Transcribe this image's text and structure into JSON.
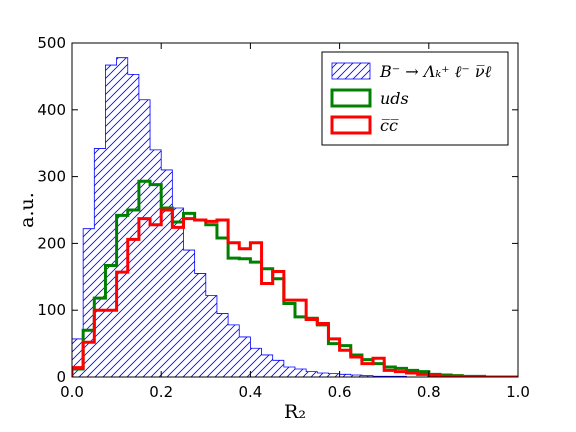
{
  "chart_data": {
    "type": "histogram",
    "xlabel": "R₂",
    "ylabel": "a.u.",
    "xlim": [
      0,
      1
    ],
    "ylim": [
      0,
      500
    ],
    "xticks": [
      "0.0",
      "0.2",
      "0.4",
      "0.6",
      "0.8",
      "1.0"
    ],
    "yticks": [
      "0",
      "100",
      "200",
      "300",
      "400",
      "500"
    ],
    "legend_position": "top-right",
    "bin_width": 0.025,
    "series": [
      {
        "name": "B⁻ → Λₖ⁺ ℓ⁻ ν̅ℓ",
        "style": "hatched",
        "color": "#0000ff",
        "values": [
          57,
          222,
          342,
          467,
          478,
          453,
          415,
          340,
          310,
          253,
          190,
          155,
          122,
          95,
          78,
          60,
          43,
          33,
          25,
          15,
          12,
          8,
          6,
          5,
          4,
          3,
          2,
          1,
          1,
          1,
          0,
          0,
          0,
          0,
          0,
          0,
          0,
          0,
          0,
          0
        ]
      },
      {
        "name": "uds",
        "style": "step",
        "color": "#008000",
        "values": [
          12,
          70,
          118,
          167,
          242,
          250,
          293,
          288,
          253,
          232,
          245,
          235,
          228,
          208,
          178,
          177,
          172,
          162,
          147,
          110,
          90,
          88,
          78,
          50,
          47,
          33,
          26,
          20,
          15,
          13,
          10,
          8,
          4,
          3,
          2,
          1,
          1,
          0,
          0,
          0
        ]
      },
      {
        "name": "c̅c̅",
        "style": "step",
        "color": "#ff0000",
        "values": [
          14,
          52,
          100,
          100,
          157,
          206,
          237,
          228,
          250,
          224,
          237,
          235,
          233,
          235,
          201,
          192,
          201,
          140,
          158,
          115,
          115,
          86,
          80,
          57,
          40,
          30,
          20,
          28,
          10,
          8,
          6,
          4,
          2,
          1,
          1,
          0,
          0,
          0,
          0,
          0
        ]
      }
    ]
  }
}
